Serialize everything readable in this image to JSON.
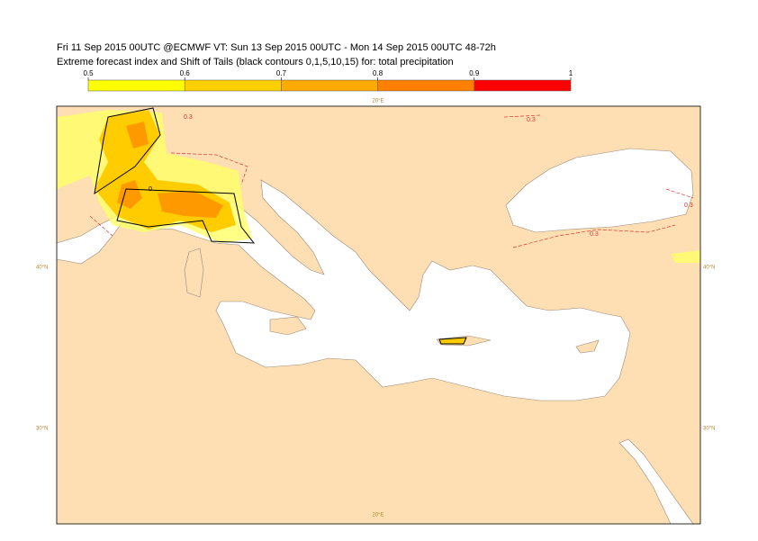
{
  "header": {
    "line1": "Fri 11 Sep 2015 00UTC @ECMWF VT: Sun 13 Sep 2015 00UTC - Mon 14 Sep 2015 00UTC  48-72h",
    "line2": "Extreme forecast index and Shift of Tails (black contours 0,1,5,10,15) for: total precipitation"
  },
  "colorbar": {
    "ticks": [
      0.5,
      0.6,
      0.7,
      0.8,
      0.9,
      1
    ],
    "colors": [
      "#ffff00",
      "#ffd000",
      "#ffaa00",
      "#ff7f00",
      "#ff0000"
    ]
  },
  "map": {
    "lon_label": "20°E",
    "lat_labels": [
      "40°N",
      "30°N"
    ],
    "contour_labels": [
      "0.3",
      "0"
    ]
  }
}
